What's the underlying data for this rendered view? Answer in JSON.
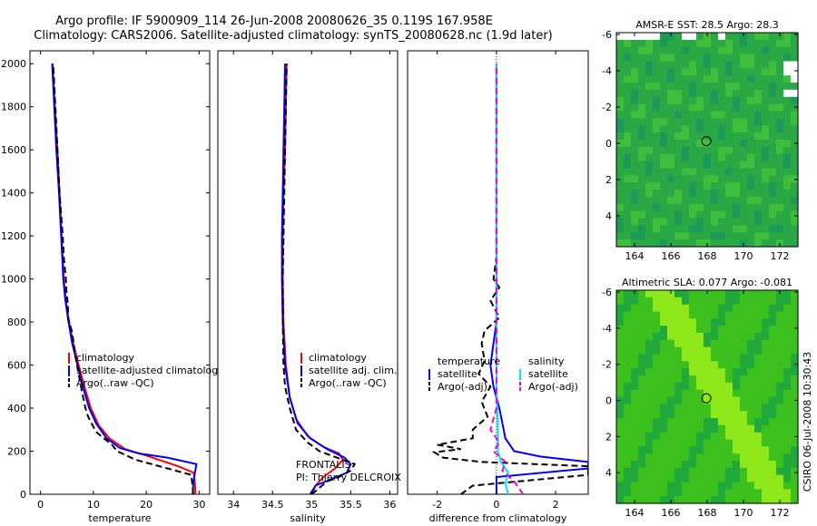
{
  "header": {
    "title_line1": "Argo profile: IF 5900909_114 26-Jun-2008 20080626_35 0.119S 167.958E",
    "title_line2": "Climatology: CARS2006. Satellite-adjusted climatology: synTS_20080628.nc (1.9d later)"
  },
  "side_label": "CSIRO 06-Jul-2008 10:30:43",
  "colors": {
    "climatology": "#ff0000",
    "satellite": "#0000ff",
    "argo": "#000000",
    "sal_satellite": "#00e5ee",
    "sal_argo": "#ee00ee"
  },
  "chart_data": [
    {
      "id": "temperature",
      "type": "line",
      "xlabel": "temperature",
      "ylabel": "",
      "xlim": [
        -2,
        32
      ],
      "ylim": [
        2060,
        0
      ],
      "xticks": [
        0,
        10,
        20,
        30
      ],
      "xtick_labels": [
        "0",
        "10",
        "20",
        "30"
      ],
      "yticks": [
        0,
        200,
        400,
        600,
        800,
        1000,
        1200,
        1400,
        1600,
        1800,
        2000
      ],
      "ytick_labels": [
        "0",
        "200",
        "400",
        "600",
        "800",
        "1000",
        "1200",
        "1400",
        "1600",
        "1800",
        "2000"
      ],
      "legend": [
        "climatology",
        "satellite-adjusted climatology",
        "Argo(..raw -QC)"
      ],
      "series": [
        {
          "name": "climatology",
          "color": "#ff0000",
          "style": "solid",
          "points": [
            [
              29.3,
              0
            ],
            [
              29.2,
              50
            ],
            [
              29.0,
              100
            ],
            [
              26,
              130
            ],
            [
              20,
              180
            ],
            [
              16,
              210
            ],
            [
              13,
              260
            ],
            [
              11,
              320
            ],
            [
              9.5,
              400
            ],
            [
              8.3,
              500
            ],
            [
              7.2,
              600
            ],
            [
              6.2,
              700
            ],
            [
              5.4,
              800
            ],
            [
              4.8,
              900
            ],
            [
              4.4,
              1000
            ],
            [
              4.0,
              1200
            ],
            [
              3.6,
              1400
            ],
            [
              3.2,
              1600
            ],
            [
              2.7,
              1800
            ],
            [
              2.3,
              2000
            ]
          ]
        },
        {
          "name": "satellite-adjusted climatology",
          "color": "#0000ff",
          "style": "solid",
          "points": [
            [
              28.8,
              0
            ],
            [
              28.9,
              50
            ],
            [
              29.2,
              100
            ],
            [
              29.5,
              140
            ],
            [
              24,
              170
            ],
            [
              18.5,
              190
            ],
            [
              15,
              215
            ],
            [
              12.5,
              260
            ],
            [
              10.5,
              330
            ],
            [
              9.2,
              400
            ],
            [
              8.0,
              500
            ],
            [
              7.0,
              600
            ],
            [
              6.0,
              700
            ],
            [
              5.3,
              800
            ],
            [
              4.7,
              900
            ],
            [
              4.3,
              1000
            ],
            [
              3.9,
              1200
            ],
            [
              3.5,
              1400
            ],
            [
              3.0,
              1600
            ],
            [
              2.6,
              1800
            ],
            [
              2.2,
              2000
            ]
          ]
        },
        {
          "name": "Argo(..raw -QC)",
          "color": "#000000",
          "style": "dashed",
          "points": [
            [
              28.9,
              0
            ],
            [
              28.7,
              50
            ],
            [
              28.5,
              90
            ],
            [
              24,
              120
            ],
            [
              18,
              160
            ],
            [
              14.5,
              200
            ],
            [
              13.5,
              230
            ],
            [
              10.5,
              290
            ],
            [
              9,
              360
            ],
            [
              8.5,
              400
            ],
            [
              7.8,
              480
            ],
            [
              7.2,
              560
            ],
            [
              6.6,
              640
            ],
            [
              6.3,
              700
            ],
            [
              5.9,
              760
            ],
            [
              5.2,
              820
            ],
            [
              5.2,
              880
            ],
            [
              4.9,
              940
            ],
            [
              4.8,
              1000
            ],
            [
              4.4,
              1100
            ],
            [
              4.2,
              1200
            ],
            [
              3.6,
              1400
            ],
            [
              3.2,
              1600
            ],
            [
              2.8,
              1800
            ],
            [
              2.4,
              2000
            ]
          ]
        }
      ]
    },
    {
      "id": "salinity",
      "type": "line",
      "xlabel": "salinity",
      "ylabel": "",
      "xlim": [
        33.8,
        36.1
      ],
      "ylim": [
        2060,
        0
      ],
      "xticks": [
        34,
        34.5,
        35,
        35.5,
        36
      ],
      "xtick_labels": [
        "34",
        "34.5",
        "35",
        "35.5",
        "36"
      ],
      "yticks": [],
      "ytick_labels": [],
      "legend": [
        "climatology",
        "satellite adj. clim.",
        "Argo(..raw -QC)"
      ],
      "annotation_lines": [
        "FRONTALIS",
        "PI: Thierry DELCROIX"
      ],
      "series": [
        {
          "name": "climatology",
          "color": "#ff0000",
          "style": "solid",
          "points": [
            [
              35.0,
              0
            ],
            [
              35.05,
              40
            ],
            [
              35.15,
              80
            ],
            [
              35.3,
              120
            ],
            [
              35.4,
              160
            ],
            [
              35.35,
              190
            ],
            [
              35.15,
              220
            ],
            [
              34.95,
              270
            ],
            [
              34.8,
              350
            ],
            [
              34.72,
              450
            ],
            [
              34.67,
              600
            ],
            [
              34.64,
              800
            ],
            [
              34.63,
              1000
            ],
            [
              34.63,
              1200
            ],
            [
              34.64,
              1400
            ],
            [
              34.66,
              1600
            ],
            [
              34.67,
              1800
            ],
            [
              34.68,
              2000
            ]
          ]
        },
        {
          "name": "satellite adj. clim.",
          "color": "#0000ff",
          "style": "solid",
          "points": [
            [
              34.98,
              0
            ],
            [
              35.05,
              40
            ],
            [
              35.25,
              70
            ],
            [
              35.45,
              100
            ],
            [
              35.5,
              140
            ],
            [
              35.42,
              170
            ],
            [
              35.2,
              210
            ],
            [
              34.98,
              260
            ],
            [
              34.82,
              330
            ],
            [
              34.72,
              450
            ],
            [
              34.66,
              600
            ],
            [
              34.63,
              800
            ],
            [
              34.62,
              1000
            ],
            [
              34.62,
              1200
            ],
            [
              34.63,
              1400
            ],
            [
              34.64,
              1600
            ],
            [
              34.65,
              1800
            ],
            [
              34.66,
              2000
            ]
          ]
        },
        {
          "name": "Argo(..raw -QC)",
          "color": "#000000",
          "style": "dashed",
          "points": [
            [
              35.0,
              0
            ],
            [
              35.1,
              30
            ],
            [
              35.2,
              60
            ],
            [
              35.35,
              80
            ],
            [
              35.5,
              110
            ],
            [
              35.55,
              140
            ],
            [
              35.1,
              200
            ],
            [
              34.95,
              240
            ],
            [
              34.8,
              300
            ],
            [
              34.72,
              400
            ],
            [
              34.66,
              500
            ],
            [
              34.64,
              600
            ],
            [
              34.63,
              800
            ],
            [
              34.63,
              1000
            ],
            [
              34.64,
              1200
            ],
            [
              34.65,
              1400
            ],
            [
              34.66,
              1600
            ],
            [
              34.67,
              1800
            ],
            [
              34.68,
              2000
            ]
          ]
        }
      ]
    },
    {
      "id": "difference",
      "type": "line",
      "xlabel": "difference from climatology",
      "ylabel": "",
      "xlim": [
        -3,
        3.1
      ],
      "ylim": [
        2060,
        0
      ],
      "xticks": [
        -2,
        0,
        2
      ],
      "xtick_labels": [
        "-2",
        "0",
        "2"
      ],
      "yticks": [],
      "ytick_labels": [],
      "legend_groups": [
        {
          "heading": "temperature",
          "items": [
            "satellite",
            "Argo(-adj)"
          ]
        },
        {
          "heading": "salinity",
          "items": [
            "satellite",
            "Argo(-adj)"
          ]
        }
      ],
      "series": [
        {
          "name": "temperature satellite",
          "color": "#0000ff",
          "style": "solid",
          "points": [
            [
              0,
              0
            ],
            [
              0,
              40
            ],
            [
              0,
              80
            ],
            [
              3.1,
              120
            ],
            [
              3.1,
              150
            ],
            [
              1.5,
              175
            ],
            [
              0.6,
              200
            ],
            [
              0.3,
              260
            ],
            [
              0.1,
              400
            ],
            [
              -0.1,
              500
            ],
            [
              -0.2,
              600
            ],
            [
              -0.1,
              700
            ],
            [
              0,
              800
            ],
            [
              0,
              1000
            ],
            [
              0,
              1200
            ],
            [
              0,
              1400
            ],
            [
              0,
              1600
            ],
            [
              0,
              1800
            ],
            [
              0,
              2000
            ]
          ]
        },
        {
          "name": "temperature Argo(-adj)",
          "color": "#000000",
          "style": "dashed",
          "points": [
            [
              -1.2,
              0
            ],
            [
              -0.8,
              40
            ],
            [
              3.1,
              90
            ],
            [
              3.1,
              130
            ],
            [
              -0.5,
              150
            ],
            [
              -1.8,
              170
            ],
            [
              -2.1,
              195
            ],
            [
              -1.2,
              210
            ],
            [
              -2.0,
              230
            ],
            [
              -0.8,
              260
            ],
            [
              -0.8,
              300
            ],
            [
              -0.3,
              360
            ],
            [
              -0.5,
              430
            ],
            [
              -0.2,
              500
            ],
            [
              -0.6,
              560
            ],
            [
              -0.4,
              620
            ],
            [
              -0.5,
              700
            ],
            [
              -0.4,
              760
            ],
            [
              0.1,
              820
            ],
            [
              -0.2,
              900
            ],
            [
              0.1,
              960
            ],
            [
              -0.1,
              1000
            ],
            [
              0,
              1100
            ],
            [
              0,
              1200
            ],
            [
              0,
              1400
            ],
            [
              0,
              1600
            ],
            [
              0,
              1800
            ],
            [
              0,
              2000
            ]
          ]
        },
        {
          "name": "salinity satellite",
          "color": "#00e5ee",
          "style": "solid",
          "points": [
            [
              0.4,
              0
            ],
            [
              0.3,
              50
            ],
            [
              0.4,
              100
            ],
            [
              0.15,
              150
            ],
            [
              0.05,
              200
            ],
            [
              0.05,
              300
            ],
            [
              0,
              500
            ],
            [
              0,
              1000
            ],
            [
              0,
              1500
            ],
            [
              0,
              2000
            ]
          ]
        },
        {
          "name": "salinity Argo(-adj)",
          "color": "#ee00ee",
          "style": "dashed",
          "points": [
            [
              0.9,
              0
            ],
            [
              0.6,
              60
            ],
            [
              0.2,
              110
            ],
            [
              0.3,
              150
            ],
            [
              -0.1,
              200
            ],
            [
              0.1,
              240
            ],
            [
              -0.2,
              300
            ],
            [
              0,
              400
            ],
            [
              0,
              500
            ],
            [
              0,
              800
            ],
            [
              0,
              1000
            ],
            [
              0,
              1500
            ],
            [
              0,
              2000
            ]
          ]
        }
      ]
    },
    {
      "id": "sst-map",
      "type": "heatmap",
      "title": "AMSR-E SST: 28.5 Argo: 28.3",
      "xlim": [
        163,
        173
      ],
      "ylim": [
        -6.1,
        5.7
      ],
      "xticks": [
        164,
        166,
        168,
        170,
        172
      ],
      "xtick_labels": [
        "164",
        "166",
        "168",
        "170",
        "172"
      ],
      "yticks": [
        -6,
        -4,
        -2,
        0,
        2,
        4
      ],
      "ytick_labels": [
        "-6",
        "-4",
        "-2",
        "0",
        "2",
        "4"
      ],
      "marker": {
        "lon": 167.958,
        "lat": -0.119
      },
      "colors": {
        "base": "#2aa844",
        "warm": "#3fbd3c",
        "cool": "#1c9a5a",
        "missing": "#ffffff"
      }
    },
    {
      "id": "sla-map",
      "type": "heatmap",
      "title": "Altimetric SLA: 0.077 Argo: -0.081",
      "xlim": [
        163,
        173
      ],
      "ylim": [
        -6.1,
        5.7
      ],
      "xticks": [
        164,
        166,
        168,
        170,
        172
      ],
      "xtick_labels": [
        "164",
        "166",
        "168",
        "170",
        "172"
      ],
      "yticks": [
        -6,
        -4,
        -2,
        0,
        2,
        4
      ],
      "ytick_labels": [
        "-6",
        "-4",
        "-2",
        "0",
        "2",
        "4"
      ],
      "marker": {
        "lon": 167.958,
        "lat": -0.119
      },
      "colors": {
        "base": "#3cc01e",
        "ridge": "#8ee81a",
        "low": "#20a83a"
      }
    }
  ]
}
